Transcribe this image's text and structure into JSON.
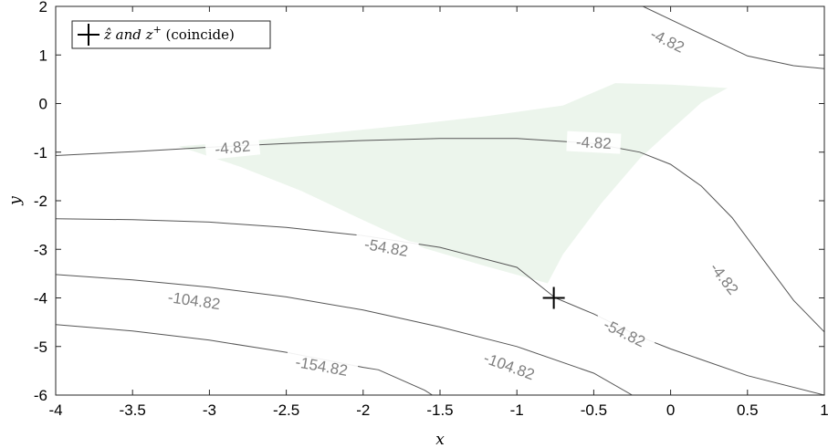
{
  "chart_data": {
    "type": "contour",
    "xlabel": "x",
    "ylabel": "y",
    "xlim": [
      -4,
      1
    ],
    "ylim": [
      -6,
      2
    ],
    "x_ticks": [
      "-4",
      "-3.5",
      "-3",
      "-2.5",
      "-2",
      "-1.5",
      "-1",
      "-0.5",
      "0",
      "0.5",
      "1"
    ],
    "y_ticks": [
      "-6",
      "-5",
      "-4",
      "-3",
      "-2",
      "-1",
      "0",
      "1",
      "2"
    ],
    "grid": false,
    "legend": {
      "placement": "top-left",
      "entries": [
        {
          "marker": "plus",
          "color": "#000000",
          "label_math": "ẑ and z",
          "label_superscript": "+",
          "label_tail": " (coincide)"
        }
      ]
    },
    "contour_levels": [
      {
        "level": "-4.82",
        "paths": [
          [
            [
              -4,
              -1.07
            ],
            [
              -3.5,
              -0.99
            ],
            [
              -3,
              -0.9
            ],
            [
              -2.5,
              -0.82
            ],
            [
              -2,
              -0.76
            ],
            [
              -1.5,
              -0.72
            ],
            [
              -1,
              -0.72
            ],
            [
              -0.5,
              -0.82
            ],
            [
              -0.2,
              -1.0
            ],
            [
              0,
              -1.25
            ],
            [
              0.2,
              -1.7
            ],
            [
              0.4,
              -2.35
            ],
            [
              0.6,
              -3.2
            ],
            [
              0.8,
              -4.05
            ],
            [
              1,
              -4.7
            ]
          ],
          [
            [
              -0.18,
              2.0
            ],
            [
              0.1,
              1.58
            ],
            [
              0.5,
              0.98
            ],
            [
              0.8,
              0.78
            ],
            [
              1,
              0.72
            ]
          ]
        ],
        "labels": [
          [
            -2.85,
            -0.9,
            -6
          ],
          [
            -0.5,
            -0.8,
            3
          ],
          [
            0.35,
            -3.6,
            52
          ],
          [
            -0.02,
            1.3,
            26
          ]
        ]
      },
      {
        "level": "-54.82",
        "paths": [
          [
            [
              -4,
              -2.37
            ],
            [
              -3.5,
              -2.39
            ],
            [
              -3,
              -2.44
            ],
            [
              -2.5,
              -2.55
            ],
            [
              -2,
              -2.72
            ],
            [
              -1.5,
              -2.96
            ],
            [
              -1,
              -3.37
            ],
            [
              -0.75,
              -4.0
            ],
            [
              -0.5,
              -4.33
            ],
            [
              -0.2,
              -4.8
            ],
            [
              0,
              -5.05
            ],
            [
              0.5,
              -5.6
            ],
            [
              1,
              -6.0
            ]
          ]
        ],
        "labels": [
          [
            -1.85,
            -2.96,
            10
          ],
          [
            -0.3,
            -4.72,
            26
          ]
        ]
      },
      {
        "level": "-104.82",
        "paths": [
          [
            [
              -4,
              -3.52
            ],
            [
              -3.5,
              -3.63
            ],
            [
              -3,
              -3.78
            ],
            [
              -2.5,
              -3.98
            ],
            [
              -2,
              -4.25
            ],
            [
              -1.5,
              -4.6
            ],
            [
              -1,
              -5.0
            ],
            [
              -0.5,
              -5.55
            ],
            [
              -0.25,
              -6.0
            ]
          ]
        ],
        "labels": [
          [
            -3.1,
            -4.05,
            8
          ],
          [
            -1.05,
            -5.4,
            20
          ]
        ]
      },
      {
        "level": "-154.82",
        "paths": [
          [
            [
              -4,
              -4.55
            ],
            [
              -3.5,
              -4.68
            ],
            [
              -3,
              -4.87
            ],
            [
              -2.5,
              -5.12
            ],
            [
              -2,
              -5.43
            ],
            [
              -1.9,
              -5.48
            ],
            [
              -1.6,
              -5.9
            ],
            [
              -1.55,
              -6.0
            ]
          ]
        ],
        "labels": [
          [
            -2.27,
            -5.4,
            10
          ]
        ]
      }
    ],
    "feasible_region": {
      "color": "#ecf5ec",
      "vertices": [
        [
          -3.2,
          -0.88
        ],
        [
          -2.7,
          -0.76
        ],
        [
          -2.2,
          -0.6
        ],
        [
          -1.7,
          -0.44
        ],
        [
          -1.2,
          -0.26
        ],
        [
          -0.7,
          -0.04
        ],
        [
          -0.36,
          0.42
        ],
        [
          0.0,
          0.39
        ],
        [
          0.37,
          0.32
        ],
        [
          0.2,
          0.02
        ],
        [
          0.0,
          -0.55
        ],
        [
          -0.2,
          -1.13
        ],
        [
          -0.45,
          -2.05
        ],
        [
          -0.7,
          -3.1
        ],
        [
          -0.8,
          -3.7
        ],
        [
          -1.2,
          -3.35
        ],
        [
          -1.6,
          -2.98
        ],
        [
          -2.0,
          -2.4
        ],
        [
          -2.4,
          -1.8
        ],
        [
          -2.8,
          -1.3
        ]
      ]
    },
    "points": [
      {
        "x": -0.76,
        "y": -4.0,
        "marker": "plus",
        "color": "#000000"
      }
    ]
  }
}
